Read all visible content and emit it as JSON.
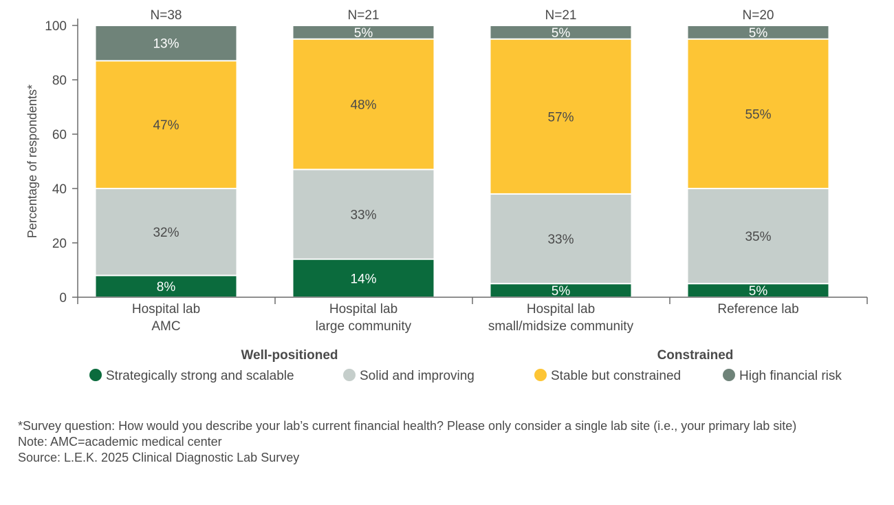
{
  "chart_data": {
    "type": "bar",
    "stacked": true,
    "ylabel": "Percentage of respondents*",
    "ylim": [
      0,
      100
    ],
    "yticks": [
      0,
      20,
      40,
      60,
      80,
      100
    ],
    "grid": false,
    "categories": [
      [
        "Hospital lab",
        "AMC"
      ],
      [
        "Hospital lab",
        "large community"
      ],
      [
        "Hospital lab",
        "small/midsize community"
      ],
      [
        "Reference lab"
      ]
    ],
    "sample_sizes": [
      "N=38",
      "N=21",
      "N=21",
      "N=20"
    ],
    "series": [
      {
        "name": "Strategically strong and scalable",
        "color": "#0b6b3d",
        "label_color": "#ffffff",
        "values": [
          8,
          14,
          5,
          5
        ]
      },
      {
        "name": "Solid and improving",
        "color": "#c5cecb",
        "label_color": "#4a4a4a",
        "values": [
          32,
          33,
          33,
          35
        ]
      },
      {
        "name": "Stable but constrained",
        "color": "#fdc535",
        "label_color": "#4a4a4a",
        "values": [
          47,
          48,
          57,
          55
        ]
      },
      {
        "name": "High financial risk",
        "color": "#6f8379",
        "label_color": "#ffffff",
        "values": [
          13,
          5,
          5,
          5
        ]
      }
    ],
    "legend_groups": [
      {
        "title": "Well-positioned",
        "series": [
          0,
          1
        ]
      },
      {
        "title": "Constrained",
        "series": [
          2,
          3
        ]
      }
    ],
    "legend_placement": "bottom"
  },
  "notes": {
    "survey": "*Survey question: How would you describe your lab’s current financial health? Please only consider a single lab site (i.e., your primary lab site)",
    "note": "Note: AMC=academic medical center",
    "source": "Source: L.E.K. 2025 Clinical Diagnostic Lab Survey"
  }
}
